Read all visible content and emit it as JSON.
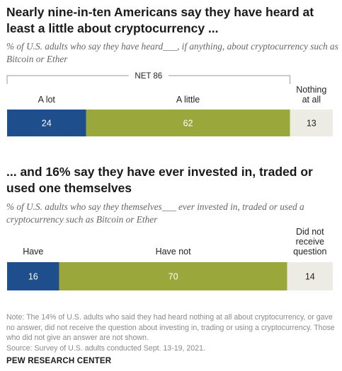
{
  "headline1": "Nearly nine-in-ten Americans say they have heard at least a little about cryptocurrency ...",
  "subtitle1": "% of U.S. adults who say they have heard___, if anything, about cryptocurrency such as Bitcoin or Ether",
  "headline2": "... and 16% say they have ever invested in, traded or used one themselves",
  "subtitle2": "% of U.S. adults who say they themselves___ ever invested in, traded or used a cryptocurrency such as Bitcoin or Ether",
  "note": "Note: The 14% of U.S. adults who said they had heard nothing at all about cryptocurrency, or gave no answer, did not receive the question about investing in, trading or using a cryptocurrency. Those who did not give an answer are not shown.",
  "source": "Source: Survey of U.S. adults conducted Sept. 13-19, 2021.",
  "brand": "PEW RESEARCH CENTER",
  "colors": {
    "dark_blue": "#1f4e8c",
    "olive": "#9aa83b",
    "light_gray": "#ecebe4",
    "text": "#231f20"
  },
  "chart_data": [
    {
      "type": "bar",
      "orientation": "horizontal-stacked",
      "title": "Nearly nine-in-ten Americans say they have heard at least a little about cryptocurrency ...",
      "categories": [
        "A lot",
        "A little",
        "Nothing at all"
      ],
      "values": [
        24,
        62,
        13
      ],
      "net": {
        "label": "NET 86",
        "value": 86
      }
    },
    {
      "type": "bar",
      "orientation": "horizontal-stacked",
      "title": "... and 16% say they have ever invested in, traded or used one themselves",
      "categories": [
        "Have",
        "Have not",
        "Did not receive question"
      ],
      "values": [
        16,
        70,
        14
      ]
    }
  ]
}
